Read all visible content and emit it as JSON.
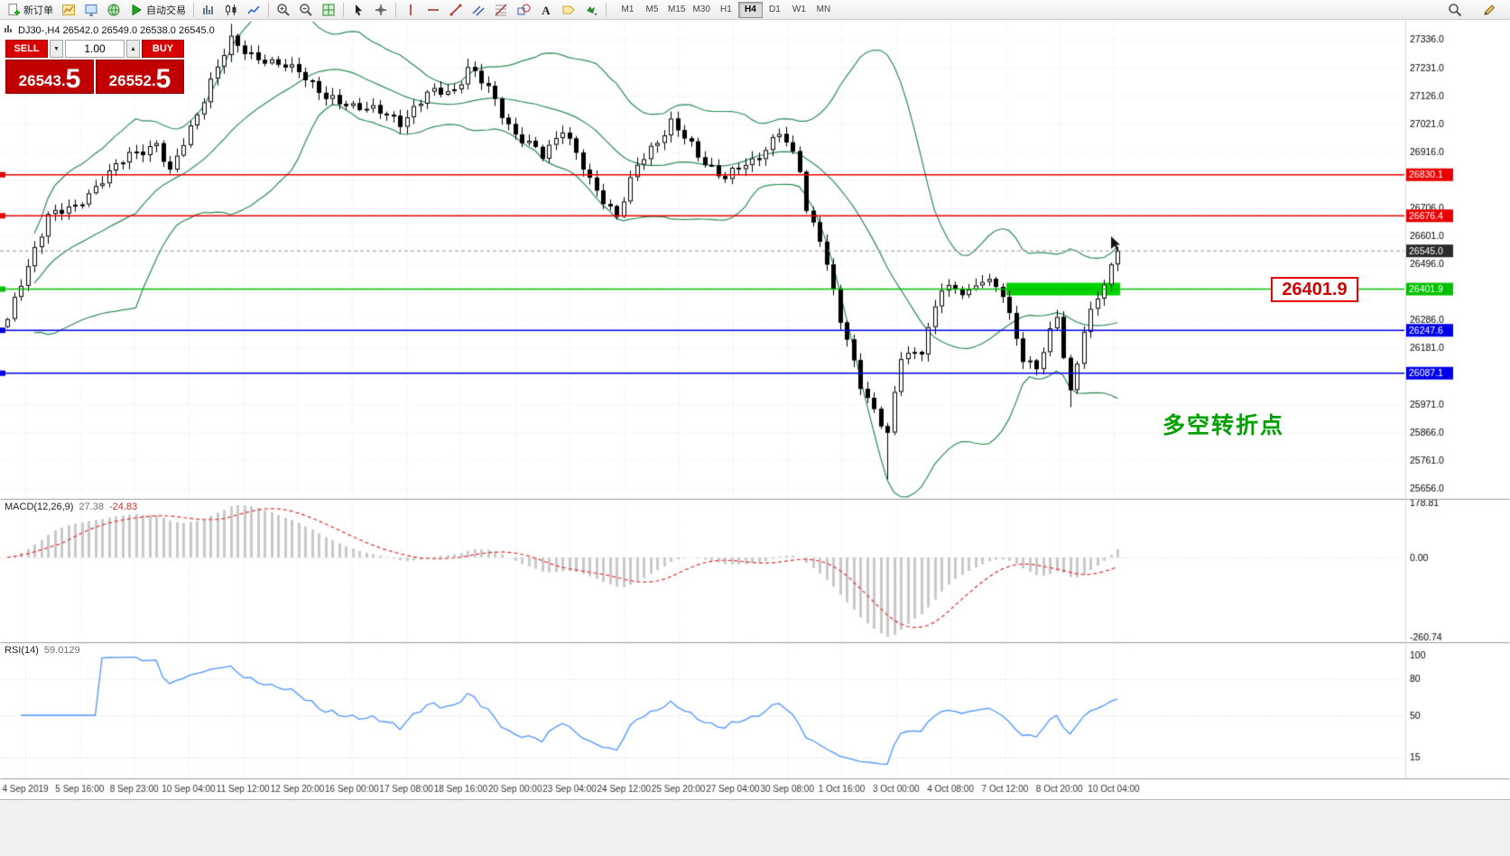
{
  "toolbar": {
    "items": [
      {
        "name": "new-order",
        "icon": "doc-plus",
        "label": "新订单"
      },
      {
        "name": "new-chart",
        "icon": "chart-plus"
      },
      {
        "name": "market-watch",
        "icon": "monitor"
      },
      {
        "name": "navigator",
        "icon": "globe"
      },
      {
        "name": "auto-trading",
        "icon": "play",
        "label": "自动交易"
      },
      {
        "sep": true
      },
      {
        "name": "bar-chart",
        "icon": "bars"
      },
      {
        "name": "candlestick-chart",
        "icon": "candles"
      },
      {
        "name": "line-chart",
        "icon": "line-chart"
      },
      {
        "sep": true
      },
      {
        "name": "zoom-in",
        "icon": "zoom-in"
      },
      {
        "name": "zoom-out",
        "icon": "zoom-out"
      },
      {
        "name": "tile-windows",
        "icon": "grid-tile"
      },
      {
        "sep": true
      },
      {
        "name": "cursor",
        "icon": "cursor"
      },
      {
        "name": "crosshair",
        "icon": "crosshair"
      },
      {
        "sep": true
      },
      {
        "name": "vertical-line",
        "icon": "vline"
      },
      {
        "name": "horizontal-line",
        "icon": "hline"
      },
      {
        "name": "trendline",
        "icon": "tline"
      },
      {
        "name": "equidistant-channel",
        "icon": "channel"
      },
      {
        "name": "fibonacci",
        "icon": "fibo"
      },
      {
        "name": "shapes",
        "icon": "shapes"
      },
      {
        "name": "text",
        "icon": "textA"
      },
      {
        "name": "label",
        "icon": "tag"
      },
      {
        "name": "arrows",
        "icon": "arrow-dd"
      },
      {
        "sep": true
      }
    ],
    "timeframes": [
      "M1",
      "M5",
      "M15",
      "M30",
      "H1",
      "H4",
      "D1",
      "W1",
      "MN"
    ],
    "active_timeframe": "H4",
    "right_icons": [
      {
        "name": "search",
        "icon": "magnifier"
      },
      {
        "name": "edit",
        "icon": "pencil"
      }
    ]
  },
  "symbol_info": {
    "text": "DJ30-,H4  26542.0 26549.0 26538.0 26545.0"
  },
  "trade_panel": {
    "sell_label": "SELL",
    "buy_label": "BUY",
    "volume": "1.00",
    "caret_down": "▼",
    "caret_up": "▲",
    "sell_price": {
      "main": "26543.",
      "frac": "5"
    },
    "buy_price": {
      "main": "26552.",
      "frac": "5"
    }
  },
  "indicators": {
    "macd_name": "MACD(12,26,9)",
    "macd_value1": "27.38",
    "macd_value2": "-24.83",
    "rsi_name": "RSI(14)",
    "rsi_value": "59.0129"
  },
  "callout": {
    "text": "26401.9"
  },
  "annotation": {
    "text": "多空转折点",
    "color": "#00a000"
  },
  "chart_data": {
    "type": "candlestick",
    "symbol": "DJ30-",
    "timeframe": "H4",
    "ohlc_display": {
      "open": 26542.0,
      "high": 26549.0,
      "low": 26538.0,
      "close": 26545.0
    },
    "price_axis": {
      "start": 27336.0,
      "step": 105.0,
      "count": 17
    },
    "time_labels": [
      "4 Sep 2019",
      "5 Sep 16:00",
      "8 Sep 23:00",
      "10 Sep 04:00",
      "11 Sep 12:00",
      "12 Sep 20:00",
      "16 Sep 00:00",
      "17 Sep 08:00",
      "18 Sep 16:00",
      "20 Sep 00:00",
      "23 Sep 04:00",
      "24 Sep 12:00",
      "25 Sep 20:00",
      "27 Sep 04:00",
      "30 Sep 08:00",
      "1 Oct 16:00",
      "3 Oct 00:00",
      "4 Oct 08:00",
      "7 Oct 12:00",
      "8 Oct 20:00",
      "10 Oct 04:00"
    ],
    "horizontal_lines": [
      {
        "price": 26830.1,
        "label": "26830.1",
        "color": "#e80000"
      },
      {
        "price": 26676.4,
        "label": "26676.4",
        "color": "#e80000"
      },
      {
        "price": 26401.9,
        "label": "26401.9",
        "color": "#00c000"
      },
      {
        "price": 26247.6,
        "label": "26247.6",
        "color": "#0000e8"
      },
      {
        "price": 26087.1,
        "label": "26087.1",
        "color": "#0000e8"
      }
    ],
    "current_price": {
      "value": 26545.0,
      "label": "26545.0",
      "badge_color": "#2b2b2b"
    },
    "highlight_rect": {
      "price": 26401.9,
      "from_bar": 148,
      "to_bar": 164,
      "color": "#00d400"
    },
    "candles": {
      "count": 165,
      "last_close": 26545,
      "up_color": "#ffffff",
      "down_color": "#000000",
      "anchors": [
        [
          0,
          26290
        ],
        [
          3,
          26480
        ],
        [
          6,
          26690
        ],
        [
          10,
          26700
        ],
        [
          14,
          26820
        ],
        [
          18,
          26900
        ],
        [
          22,
          26950
        ],
        [
          24,
          26830
        ],
        [
          26,
          26950
        ],
        [
          30,
          27180
        ],
        [
          33,
          27330
        ],
        [
          35,
          27300
        ],
        [
          39,
          27240
        ],
        [
          43,
          27230
        ],
        [
          47,
          27110
        ],
        [
          52,
          27090
        ],
        [
          58,
          27030
        ],
        [
          62,
          27130
        ],
        [
          66,
          27150
        ],
        [
          68,
          27230
        ],
        [
          71,
          27150
        ],
        [
          75,
          26980
        ],
        [
          79,
          26900
        ],
        [
          82,
          27010
        ],
        [
          86,
          26800
        ],
        [
          90,
          26680
        ],
        [
          93,
          26860
        ],
        [
          98,
          27030
        ],
        [
          102,
          26900
        ],
        [
          106,
          26820
        ],
        [
          110,
          26880
        ],
        [
          114,
          26990
        ],
        [
          117,
          26850
        ],
        [
          118,
          26700
        ],
        [
          120,
          26600
        ],
        [
          123,
          26280
        ],
        [
          126,
          26050
        ],
        [
          129,
          25900
        ],
        [
          130,
          25850
        ],
        [
          132,
          26150
        ],
        [
          135,
          26180
        ],
        [
          138,
          26400
        ],
        [
          142,
          26400
        ],
        [
          144,
          26440
        ],
        [
          147,
          26380
        ],
        [
          150,
          26150
        ],
        [
          152,
          26100
        ],
        [
          155,
          26300
        ],
        [
          157,
          26020
        ],
        [
          159,
          26250
        ],
        [
          162,
          26420
        ],
        [
          164,
          26545
        ]
      ],
      "wick_lows": [
        [
          130,
          25690
        ],
        [
          157,
          25960
        ]
      ],
      "wick_highs": [
        [
          33,
          27395
        ],
        [
          68,
          27265
        ]
      ]
    },
    "bollinger": {
      "period": 20,
      "deviation": 2,
      "color": "#2e8b57"
    },
    "macd": {
      "fast": 12,
      "slow": 26,
      "signal": 9,
      "axis_values": [
        178.81,
        0.0,
        -260.74
      ],
      "hist_color": "#c9c9c9",
      "signal_color": "#e03030"
    },
    "rsi": {
      "period": 14,
      "value": 59.0129,
      "axis_labels": [
        100,
        80,
        50,
        15
      ],
      "levels": [
        80,
        50,
        15
      ],
      "color": "#4d94ff"
    }
  }
}
